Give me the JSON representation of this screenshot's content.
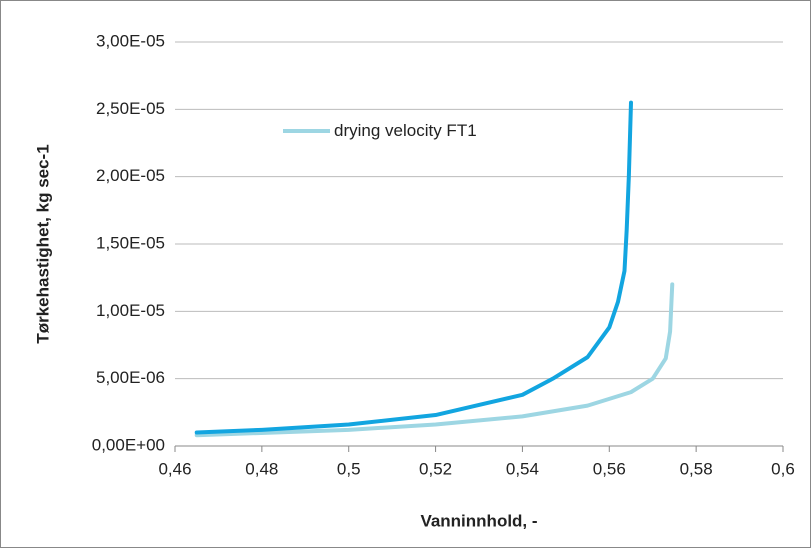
{
  "chart_data": {
    "type": "line",
    "xlabel": "Vanninnhold, -",
    "ylabel": "Tørkehastighet, kg sec-1",
    "xlim": [
      0.46,
      0.6
    ],
    "xticks": [
      {
        "value": 0.46,
        "label": "0,46"
      },
      {
        "value": 0.48,
        "label": "0,48"
      },
      {
        "value": 0.5,
        "label": "0,5"
      },
      {
        "value": 0.52,
        "label": "0,52"
      },
      {
        "value": 0.54,
        "label": "0,54"
      },
      {
        "value": 0.56,
        "label": "0,56"
      },
      {
        "value": 0.58,
        "label": "0,58"
      },
      {
        "value": 0.6,
        "label": "0,6"
      }
    ],
    "ylim": [
      0,
      3e-05
    ],
    "yticks": [
      {
        "value": 0,
        "label": "0,00E+00"
      },
      {
        "value": 5e-06,
        "label": "5,00E-06"
      },
      {
        "value": 1e-05,
        "label": "1,00E-05"
      },
      {
        "value": 1.5e-05,
        "label": "1,50E-05"
      },
      {
        "value": 2e-05,
        "label": "2,00E-05"
      },
      {
        "value": 2.5e-05,
        "label": "2,50E-05"
      },
      {
        "value": 3e-05,
        "label": "3,00E-05"
      }
    ],
    "grid": true,
    "series": [
      {
        "name": "drying velocity FT1",
        "color": "#9dd6e3",
        "x": [
          0.465,
          0.5,
          0.52,
          0.54,
          0.555,
          0.565,
          0.57,
          0.573,
          0.574,
          0.5745
        ],
        "values": [
          8e-07,
          1.2e-06,
          1.6e-06,
          2.2e-06,
          3e-06,
          4e-06,
          5e-06,
          6.5e-06,
          8.5e-06,
          1.2e-05
        ]
      },
      {
        "color": "#12a5e0",
        "x": [
          0.465,
          0.48,
          0.5,
          0.52,
          0.54,
          0.547,
          0.555,
          0.56,
          0.562,
          0.5635,
          0.564,
          0.5645,
          0.565
        ],
        "values": [
          1e-06,
          1.2e-06,
          1.6e-06,
          2.3e-06,
          3.8e-06,
          5e-06,
          6.6e-06,
          8.8e-06,
          1.07e-05,
          1.3e-05,
          1.6e-05,
          2e-05,
          2.55e-05
        ]
      }
    ]
  }
}
